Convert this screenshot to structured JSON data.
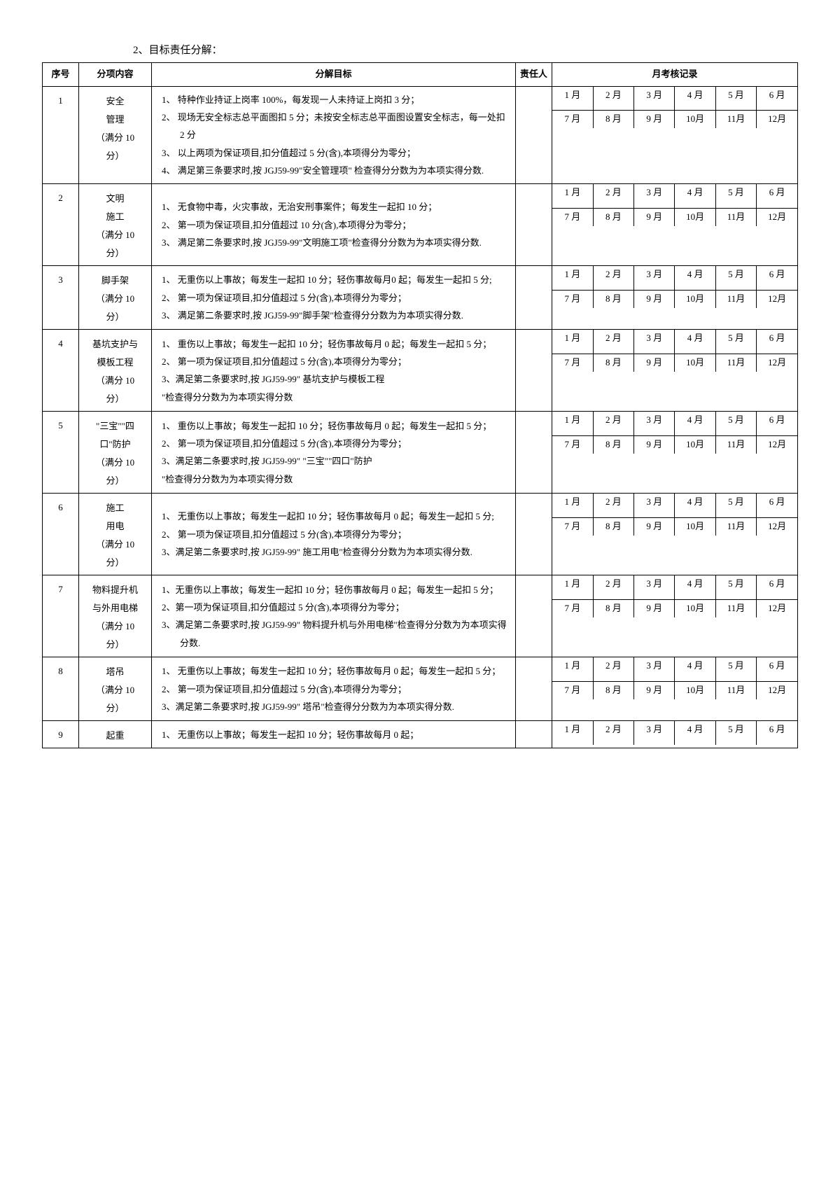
{
  "title": "2、目标责任分解：",
  "header": {
    "seq": "序号",
    "item": "分项内容",
    "target": "分解目标",
    "person": "责任人",
    "record": "月考核记录"
  },
  "months_row1": [
    "1 月",
    "2 月",
    "3 月",
    "4 月",
    "5 月",
    "6 月"
  ],
  "months_row2": [
    "7 月",
    "8 月",
    "9 月",
    "10月",
    "11月",
    "12月"
  ],
  "rows": [
    {
      "seq": "1",
      "item": "安全\n管理\n（满分 10\n分）",
      "targets": [
        "1、  特种作业持证上岗率 100%，每发现一人未持证上岗扣 3 分；",
        "2、  现场无安全标志总平面图扣 5 分；未按安全标志总平面图设置安全标志，每一处扣 2 分",
        "3、  以上两项为保证项目,扣分值超过 5 分(含),本项得分为零分；",
        "4、  满足第三条要求时,按 JGJ59-99\"安全管理项\" 检查得分分数为为本项实得分数."
      ]
    },
    {
      "seq": "2",
      "item": "文明\n施工\n（满分 10\n分）",
      "targets": [
        "1、  无食物中毒，火灾事故，无治安刑事案件；每发生一起扣 10 分；",
        "2、  第一项为保证项目,扣分值超过 10 分(含),本项得分为零分；",
        "3、  满足第二条要求时,按 JGJ59-99\"文明施工项\"检查得分分数为为本项实得分数."
      ]
    },
    {
      "seq": "3",
      "item": "脚手架\n（满分 10\n分）",
      "targets": [
        "1、  无重伤以上事故；每发生一起扣 10 分；轻伤事故每月0 起；每发生一起扣 5 分;",
        "2、  第一项为保证项目,扣分值超过 5 分(含),本项得分为零分；",
        "3、  满足第二条要求时,按 JGJ59-99\"脚手架\"检查得分分数为为本项实得分数."
      ]
    },
    {
      "seq": "4",
      "item": "基坑支护与\n模板工程\n（满分 10\n分）",
      "targets": [
        "1、  重伤以上事故；每发生一起扣 10 分；轻伤事故每月 0 起；每发生一起扣 5 分；",
        "2、  第一项为保证项目,扣分值超过 5 分(含),本项得分为零分；",
        "3、满足第二条要求时,按 JGJ59-99\" 基坑支护与模板工程",
        "\"检查得分分数为为本项实得分数"
      ]
    },
    {
      "seq": "5",
      "item": "\"三宝\"\"四\n口\"防护\n（满分 10\n分）",
      "targets": [
        "1、  重伤以上事故；每发生一起扣 10 分；轻伤事故每月 0 起；每发生一起扣 5 分；",
        "2、  第一项为保证项目,扣分值超过 5 分(含),本项得分为零分；",
        "3、满足第二条要求时,按 JGJ59-99\" \"三宝\"\"四口\"防护",
        "\"检查得分分数为为本项实得分数"
      ]
    },
    {
      "seq": "6",
      "item": "施工\n用电\n（满分 10\n分）",
      "targets": [
        "1、  无重伤以上事故；每发生一起扣 10 分；轻伤事故每月 0 起；每发生一起扣 5 分;",
        "2、  第一项为保证项目,扣分值超过 5 分(含),本项得分为零分；",
        "3、满足第二条要求时,按 JGJ59-99\" 施工用电\"检查得分分数为为本项实得分数."
      ]
    },
    {
      "seq": "7",
      "item": "物料提升机\n与外用电梯\n（满分 10\n分）",
      "targets": [
        "1、无重伤以上事故；每发生一起扣 10 分；轻伤事故每月 0 起；每发生一起扣 5 分；",
        "2、第一项为保证项目,扣分值超过 5 分(含),本项得分为零分；",
        "3、满足第二条要求时,按 JGJ59-99\" 物料提升机与外用电梯\"检查得分分数为为本项实得分数."
      ]
    },
    {
      "seq": "8",
      "item": "塔吊\n（满分 10\n分）",
      "targets": [
        "1、  无重伤以上事故；每发生一起扣 10 分；轻伤事故每月 0 起；每发生一起扣 5 分；",
        "2、  第一项为保证项目,扣分值超过 5 分(含),本项得分为零分；",
        "3、满足第二条要求时,按 JGJ59-99\" 塔吊\"检查得分分数为为本项实得分数."
      ]
    },
    {
      "seq": "9",
      "item": "起重",
      "targets": [
        "1、  无重伤以上事故；每发生一起扣 10 分；轻伤事故每月 0 起；"
      ],
      "single_row": true
    }
  ]
}
